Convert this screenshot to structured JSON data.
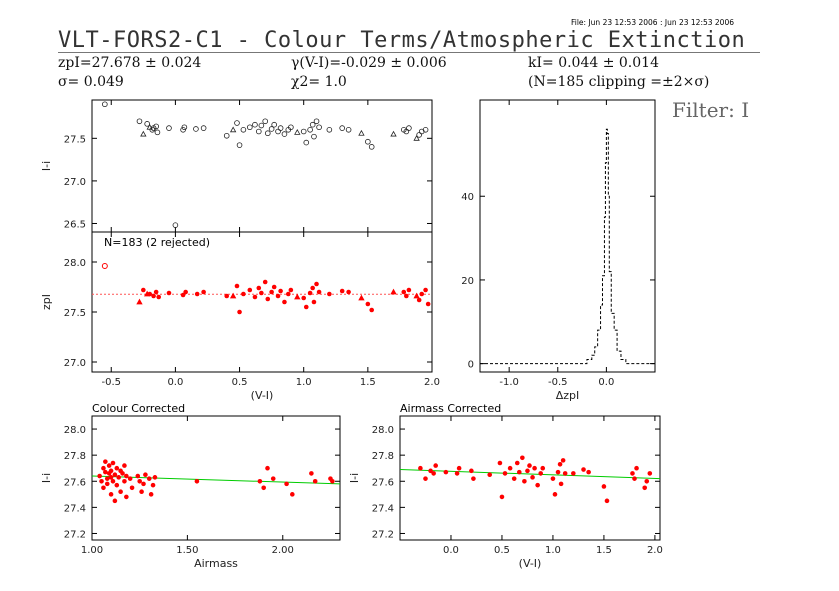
{
  "header": {
    "file_line": "File: Jun 23 12:53 2006 : Jun 23 12:53 2006",
    "title": "VLT-FORS2-C1 - Colour Terms/Atmospheric Extinction",
    "filter_label": "Filter: I"
  },
  "stats": {
    "zp": "zpI=27.678 ± 0.024",
    "sigma": "σ= 0.049",
    "gamma": "γ(V-I)=-0.029 ± 0.006",
    "chi2": "χ2= 1.0",
    "k": "kI= 0.044 ± 0.014",
    "clip": "(N=185 clipping =±2×σ)"
  },
  "colors": {
    "accent": "#ff0000",
    "fit_line": "#00cc00",
    "ref_line": "#ff5555",
    "frame": "#000000"
  },
  "chart_data": [
    {
      "id": "raw",
      "type": "scatter",
      "ylabel": "I-i",
      "xlim": [
        -0.65,
        2.0
      ],
      "ylim": [
        26.4,
        27.95
      ],
      "xticks": [
        -0.5,
        0.0,
        0.5,
        1.0,
        1.5,
        2.0
      ],
      "xticklabels": [],
      "yticks": [
        26.5,
        27.0,
        27.5
      ],
      "yticklabels": [
        "26.5",
        "27.0",
        "27.5"
      ],
      "points": [
        [
          -0.55,
          27.9
        ],
        [
          -0.28,
          27.7
        ],
        [
          -0.22,
          27.67
        ],
        [
          -0.18,
          27.6
        ],
        [
          -0.17,
          27.62
        ],
        [
          -0.15,
          27.64
        ],
        [
          -0.14,
          27.57
        ],
        [
          -0.05,
          27.62
        ],
        [
          0.06,
          27.6
        ],
        [
          0.07,
          27.63
        ],
        [
          0.16,
          27.61
        ],
        [
          0.22,
          27.62
        ],
        [
          0.4,
          27.53
        ],
        [
          0.48,
          27.68
        ],
        [
          0.5,
          27.42
        ],
        [
          0.53,
          27.6
        ],
        [
          0.58,
          27.63
        ],
        [
          0.62,
          27.66
        ],
        [
          0.65,
          27.58
        ],
        [
          0.67,
          27.65
        ],
        [
          0.7,
          27.7
        ],
        [
          0.72,
          27.56
        ],
        [
          0.75,
          27.61
        ],
        [
          0.77,
          27.66
        ],
        [
          0.8,
          27.58
        ],
        [
          0.82,
          27.62
        ],
        [
          0.85,
          27.55
        ],
        [
          0.88,
          27.6
        ],
        [
          0.9,
          27.63
        ],
        [
          1.0,
          27.58
        ],
        [
          1.02,
          27.45
        ],
        [
          1.05,
          27.6
        ],
        [
          1.07,
          27.66
        ],
        [
          1.08,
          27.52
        ],
        [
          1.1,
          27.7
        ],
        [
          1.12,
          27.63
        ],
        [
          1.2,
          27.6
        ],
        [
          1.3,
          27.62
        ],
        [
          1.35,
          27.6
        ],
        [
          1.5,
          27.46
        ],
        [
          1.53,
          27.4
        ],
        [
          1.78,
          27.6
        ],
        [
          1.8,
          27.58
        ],
        [
          1.82,
          27.62
        ],
        [
          1.9,
          27.54
        ],
        [
          1.92,
          27.58
        ],
        [
          1.95,
          27.6
        ],
        [
          0.0,
          26.48
        ]
      ],
      "triangles": [
        [
          -0.25,
          27.55
        ],
        [
          -0.2,
          27.63
        ],
        [
          0.45,
          27.6
        ],
        [
          0.95,
          27.57
        ],
        [
          1.45,
          27.56
        ],
        [
          1.7,
          27.55
        ],
        [
          1.88,
          27.5
        ]
      ]
    },
    {
      "id": "zp",
      "type": "scatter",
      "ylabel": "zpI",
      "xlabel": "(V-I)",
      "annotation": "N=183 (2 rejected)",
      "xlim": [
        -0.65,
        2.0
      ],
      "ylim": [
        26.9,
        28.3
      ],
      "xticks": [
        -0.5,
        0.0,
        0.5,
        1.0,
        1.5,
        2.0
      ],
      "xticklabels": [
        "-0.5",
        "0.0",
        "0.5",
        "1.0",
        "1.5",
        "2.0"
      ],
      "yticks": [
        27.0,
        27.5,
        28.0
      ],
      "yticklabels": [
        "27.0",
        "27.5",
        "28.0"
      ],
      "reference_y": 27.678,
      "points": [
        [
          -0.25,
          27.72
        ],
        [
          -0.2,
          27.68
        ],
        [
          -0.17,
          27.66
        ],
        [
          -0.15,
          27.7
        ],
        [
          -0.13,
          27.65
        ],
        [
          -0.05,
          27.69
        ],
        [
          0.06,
          27.67
        ],
        [
          0.08,
          27.7
        ],
        [
          0.17,
          27.68
        ],
        [
          0.22,
          27.7
        ],
        [
          0.4,
          27.66
        ],
        [
          0.48,
          27.76
        ],
        [
          0.5,
          27.5
        ],
        [
          0.53,
          27.68
        ],
        [
          0.58,
          27.72
        ],
        [
          0.62,
          27.65
        ],
        [
          0.65,
          27.74
        ],
        [
          0.67,
          27.69
        ],
        [
          0.7,
          27.8
        ],
        [
          0.72,
          27.63
        ],
        [
          0.75,
          27.7
        ],
        [
          0.77,
          27.75
        ],
        [
          0.8,
          27.66
        ],
        [
          0.82,
          27.71
        ],
        [
          0.85,
          27.6
        ],
        [
          0.88,
          27.68
        ],
        [
          0.9,
          27.72
        ],
        [
          1.0,
          27.64
        ],
        [
          1.02,
          27.55
        ],
        [
          1.05,
          27.69
        ],
        [
          1.07,
          27.74
        ],
        [
          1.08,
          27.6
        ],
        [
          1.1,
          27.78
        ],
        [
          1.12,
          27.7
        ],
        [
          1.2,
          27.68
        ],
        [
          1.3,
          27.71
        ],
        [
          1.35,
          27.7
        ],
        [
          1.5,
          27.58
        ],
        [
          1.53,
          27.52
        ],
        [
          1.78,
          27.7
        ],
        [
          1.8,
          27.66
        ],
        [
          1.82,
          27.72
        ],
        [
          1.9,
          27.62
        ],
        [
          1.92,
          27.68
        ],
        [
          1.95,
          27.72
        ],
        [
          1.97,
          27.58
        ]
      ],
      "triangles": [
        [
          -0.28,
          27.6
        ],
        [
          -0.22,
          27.68
        ],
        [
          0.45,
          27.66
        ],
        [
          0.95,
          27.65
        ],
        [
          1.45,
          27.64
        ],
        [
          1.7,
          27.7
        ],
        [
          1.88,
          27.66
        ]
      ],
      "rejected": [
        [
          -0.55,
          27.96
        ]
      ]
    },
    {
      "id": "hist",
      "type": "line",
      "style": "step",
      "xlabel": "ΔzpI",
      "xlim": [
        -1.3,
        0.5
      ],
      "ylim": [
        -2,
        63
      ],
      "xticks": [
        -1.0,
        -0.5,
        0.0
      ],
      "xticklabels": [
        "-1.0",
        "-0.5",
        "0.0"
      ],
      "yticks": [
        0,
        20,
        40
      ],
      "yticklabels": [
        "0",
        "20",
        "40"
      ],
      "x": [
        -1.3,
        -0.25,
        -0.2,
        -0.15,
        -0.12,
        -0.09,
        -0.06,
        -0.04,
        -0.02,
        -0.01,
        0.0,
        0.01,
        0.02,
        0.03,
        0.05,
        0.08,
        0.11,
        0.15,
        0.2,
        0.5
      ],
      "values": [
        0,
        0,
        1,
        2,
        4,
        8,
        14,
        21,
        35,
        48,
        56,
        55,
        40,
        22,
        12,
        8,
        3,
        1,
        0,
        0
      ]
    },
    {
      "id": "colour",
      "type": "scatter",
      "title": "Colour Corrected",
      "ylabel": "I-i",
      "xlabel": "Airmass",
      "xlim": [
        1.0,
        2.3
      ],
      "ylim": [
        27.15,
        28.1
      ],
      "xticks": [
        1.0,
        1.5,
        2.0
      ],
      "xticklabels": [
        "1.00",
        "1.50",
        "2.00"
      ],
      "yticks": [
        27.2,
        27.4,
        27.6,
        27.8,
        28.0
      ],
      "yticklabels": [
        "27.2",
        "27.4",
        "27.6",
        "27.8",
        "28.0"
      ],
      "fit": [
        [
          1.0,
          27.64
        ],
        [
          2.3,
          27.58
        ]
      ],
      "points": [
        [
          1.04,
          27.64
        ],
        [
          1.05,
          27.6
        ],
        [
          1.06,
          27.7
        ],
        [
          1.06,
          27.55
        ],
        [
          1.07,
          27.67
        ],
        [
          1.07,
          27.75
        ],
        [
          1.08,
          27.62
        ],
        [
          1.08,
          27.58
        ],
        [
          1.09,
          27.66
        ],
        [
          1.09,
          27.72
        ],
        [
          1.1,
          27.5
        ],
        [
          1.1,
          27.63
        ],
        [
          1.1,
          27.68
        ],
        [
          1.11,
          27.6
        ],
        [
          1.11,
          27.74
        ],
        [
          1.12,
          27.65
        ],
        [
          1.12,
          27.45
        ],
        [
          1.13,
          27.7
        ],
        [
          1.13,
          27.57
        ],
        [
          1.14,
          27.63
        ],
        [
          1.15,
          27.68
        ],
        [
          1.15,
          27.52
        ],
        [
          1.16,
          27.66
        ],
        [
          1.17,
          27.6
        ],
        [
          1.17,
          27.72
        ],
        [
          1.18,
          27.64
        ],
        [
          1.18,
          27.48
        ],
        [
          1.2,
          27.62
        ],
        [
          1.21,
          27.55
        ],
        [
          1.24,
          27.64
        ],
        [
          1.25,
          27.6
        ],
        [
          1.26,
          27.52
        ],
        [
          1.27,
          27.58
        ],
        [
          1.28,
          27.65
        ],
        [
          1.3,
          27.62
        ],
        [
          1.31,
          27.5
        ],
        [
          1.32,
          27.57
        ],
        [
          1.33,
          27.63
        ],
        [
          1.55,
          27.6
        ],
        [
          1.88,
          27.6
        ],
        [
          1.9,
          27.55
        ],
        [
          1.92,
          27.7
        ],
        [
          1.95,
          27.62
        ],
        [
          2.02,
          27.58
        ],
        [
          2.05,
          27.5
        ],
        [
          2.15,
          27.66
        ],
        [
          2.17,
          27.6
        ],
        [
          2.25,
          27.62
        ],
        [
          2.26,
          27.6
        ]
      ]
    },
    {
      "id": "airmass",
      "type": "scatter",
      "title": "Airmass Corrected",
      "ylabel": "I-i",
      "xlabel": "(V-I)",
      "xlim": [
        -0.5,
        2.05
      ],
      "ylim": [
        27.15,
        28.1
      ],
      "xticks": [
        0.0,
        0.5,
        1.0,
        1.5,
        2.0
      ],
      "xticklabels": [
        "0.0",
        "0.5",
        "1.0",
        "1.5",
        "2.0"
      ],
      "yticks": [
        27.2,
        27.4,
        27.6,
        27.8,
        28.0
      ],
      "yticklabels": [
        "27.2",
        "27.4",
        "27.6",
        "27.8",
        "28.0"
      ],
      "fit": [
        [
          -0.5,
          27.69
        ],
        [
          2.05,
          27.62
        ]
      ],
      "points": [
        [
          -0.3,
          27.7
        ],
        [
          -0.25,
          27.62
        ],
        [
          -0.2,
          27.68
        ],
        [
          -0.17,
          27.66
        ],
        [
          -0.15,
          27.72
        ],
        [
          -0.05,
          27.67
        ],
        [
          0.06,
          27.66
        ],
        [
          0.08,
          27.7
        ],
        [
          0.2,
          27.68
        ],
        [
          0.22,
          27.62
        ],
        [
          0.38,
          27.65
        ],
        [
          0.48,
          27.74
        ],
        [
          0.5,
          27.48
        ],
        [
          0.53,
          27.66
        ],
        [
          0.58,
          27.7
        ],
        [
          0.62,
          27.62
        ],
        [
          0.65,
          27.74
        ],
        [
          0.67,
          27.67
        ],
        [
          0.7,
          27.78
        ],
        [
          0.72,
          27.6
        ],
        [
          0.75,
          27.68
        ],
        [
          0.77,
          27.72
        ],
        [
          0.8,
          27.63
        ],
        [
          0.82,
          27.7
        ],
        [
          0.85,
          27.57
        ],
        [
          0.88,
          27.66
        ],
        [
          0.9,
          27.7
        ],
        [
          1.0,
          27.62
        ],
        [
          1.02,
          27.5
        ],
        [
          1.05,
          27.67
        ],
        [
          1.07,
          27.73
        ],
        [
          1.08,
          27.58
        ],
        [
          1.1,
          27.76
        ],
        [
          1.12,
          27.66
        ],
        [
          1.2,
          27.66
        ],
        [
          1.3,
          27.69
        ],
        [
          1.35,
          27.67
        ],
        [
          1.5,
          27.56
        ],
        [
          1.53,
          27.45
        ],
        [
          1.78,
          27.66
        ],
        [
          1.8,
          27.62
        ],
        [
          1.82,
          27.7
        ],
        [
          1.9,
          27.55
        ],
        [
          1.92,
          27.6
        ],
        [
          1.95,
          27.66
        ]
      ]
    }
  ]
}
